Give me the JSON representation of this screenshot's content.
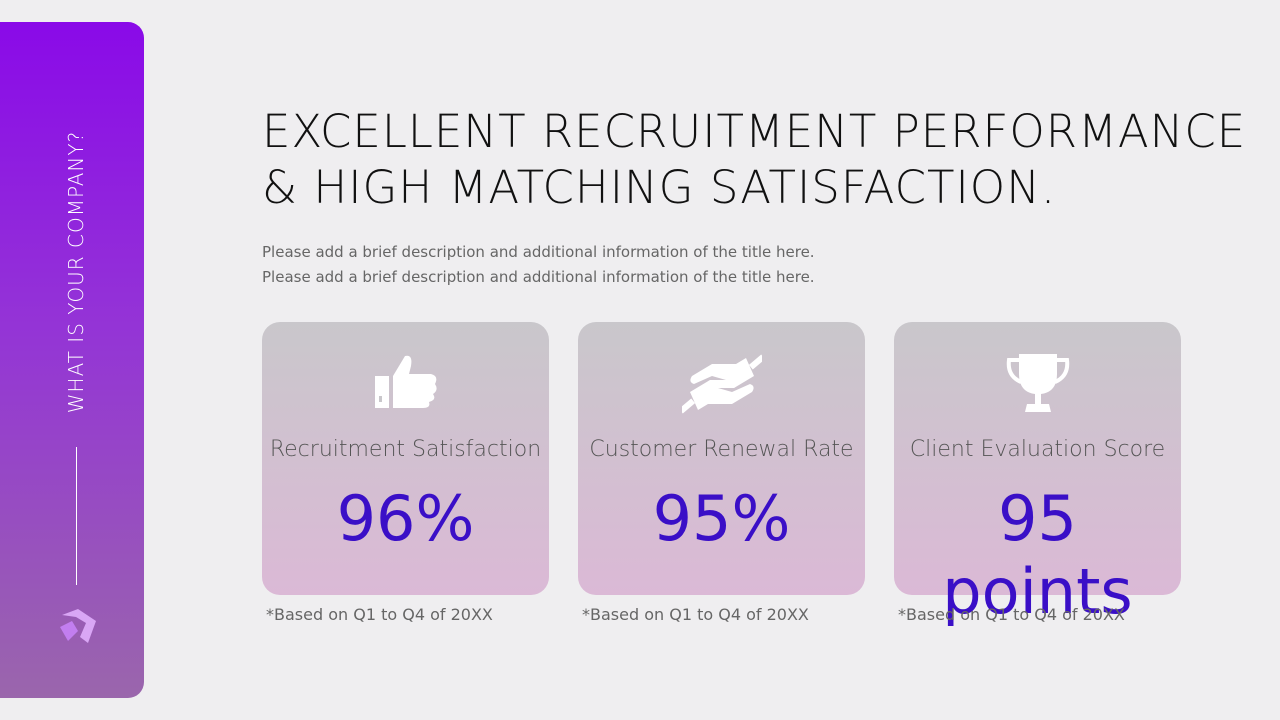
{
  "sidebar": {
    "label": "WHAT IS YOUR COMPANY?"
  },
  "header": {
    "title_lines": [
      "EXCELLENT RECRUITMENT PERFORMANCE",
      "& HIGH MATCHING SATISFACTION."
    ],
    "description_lines": [
      "Please add a brief description and additional information of the title here.",
      "Please add a brief description and additional information of the title here."
    ]
  },
  "cards": [
    {
      "label": "Recruitment Satisfaction",
      "value": "96%",
      "note": "*Based on Q1 to Q4 of 20XX"
    },
    {
      "label": "Customer Renewal Rate",
      "value": "95%",
      "note": "*Based on Q1 to Q4 of 20XX"
    },
    {
      "label": "Client Evaluation Score",
      "value": "95 points",
      "note": "*Based on Q1 to Q4 of 20XX"
    }
  ]
}
